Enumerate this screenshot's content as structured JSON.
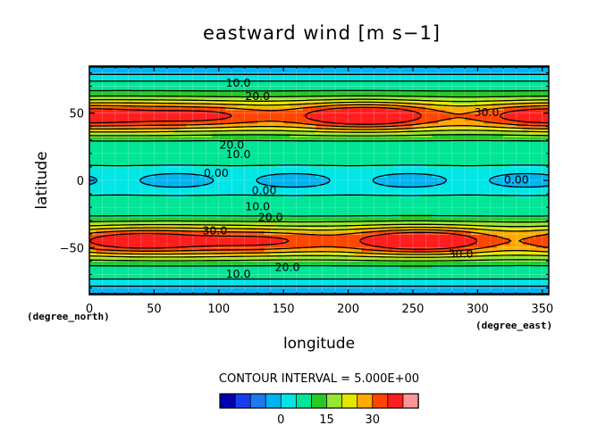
{
  "chart_data": {
    "type": "heatmap",
    "subtype": "filled-contour",
    "title": "eastward wind [m s−1]",
    "xlabel": "longitude",
    "ylabel": "latitude",
    "x_unit": "(degree_east)",
    "y_unit": "(degree_north)",
    "xlim": [
      0,
      355
    ],
    "ylim": [
      -85,
      85
    ],
    "x_ticks": [
      "0",
      "50",
      "100",
      "150",
      "200",
      "250",
      "300",
      "350"
    ],
    "y_ticks": [
      "50",
      "0",
      "−50"
    ],
    "grid": true,
    "contour_interval_text": "CONTOUR INTERVAL = 5.000E+00",
    "contour_interval": 5,
    "levels": [
      -15,
      -10,
      -5,
      0,
      5,
      10,
      15,
      20,
      25,
      30,
      35
    ],
    "colors": [
      "#0000b0",
      "#1a3cf0",
      "#1e78f0",
      "#00b4f0",
      "#00e6e6",
      "#00e696",
      "#28c828",
      "#96e632",
      "#e6e600",
      "#ffaa00",
      "#ff4600",
      "#ff1e1e",
      "#ff9696"
    ],
    "colorbar_ticks": [
      "0",
      "15",
      "30"
    ],
    "colorbar_tick_values": [
      0,
      15,
      30
    ],
    "contour_labels": [
      {
        "text": "10.0",
        "lon": 115,
        "lat": 72
      },
      {
        "text": "20.0",
        "lon": 130,
        "lat": 62
      },
      {
        "text": "30.0",
        "lon": 307,
        "lat": 50
      },
      {
        "text": "20.0",
        "lon": 110,
        "lat": 26
      },
      {
        "text": "10.0",
        "lon": 115,
        "lat": 19
      },
      {
        "text": "0.00",
        "lon": 98,
        "lat": 5
      },
      {
        "text": "0.00",
        "lon": 135,
        "lat": -8
      },
      {
        "text": "0.00",
        "lon": 330,
        "lat": 0
      },
      {
        "text": "10.0",
        "lon": 130,
        "lat": -20
      },
      {
        "text": "20.0",
        "lon": 140,
        "lat": -28
      },
      {
        "text": "30.0",
        "lon": 97,
        "lat": -38
      },
      {
        "text": "30.0",
        "lon": 287,
        "lat": -55
      },
      {
        "text": "20.0",
        "lon": 153,
        "lat": -65
      },
      {
        "text": "10.0",
        "lon": 115,
        "lat": -70
      }
    ]
  }
}
